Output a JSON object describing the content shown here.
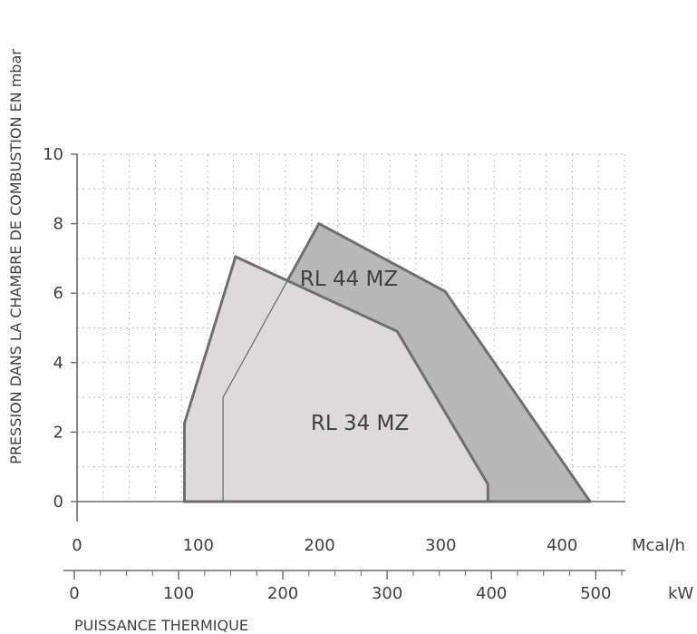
{
  "chart_data": {
    "type": "area",
    "ylabel": "PRESSION DANS LA CHAMBRE DE COMBUSTION EN mbar",
    "xlabel": "PUISSANCE THERMIQUE",
    "ylim": [
      0,
      10
    ],
    "y_ticks": [
      "0",
      "2",
      "4",
      "6",
      "8",
      "10"
    ],
    "grid": true,
    "axes": {
      "mcal": {
        "unit": "Mcal/h",
        "range": [
          0,
          450
        ],
        "ticks": [
          "0",
          "100",
          "200",
          "300",
          "400"
        ]
      },
      "kw": {
        "unit": "kW",
        "range": [
          0,
          525
        ],
        "ticks": [
          "0",
          "100",
          "200",
          "300",
          "400",
          "500"
        ]
      }
    },
    "series": [
      {
        "name": "RL 44 MZ",
        "color": "#b8b8b8",
        "x_unit": "kW",
        "points": [
          [
            140,
            0
          ],
          [
            140,
            3
          ],
          [
            232,
            8
          ],
          [
            353,
            6.05
          ],
          [
            492,
            0
          ]
        ]
      },
      {
        "name": "RL 34 MZ",
        "color": "#dcdadb",
        "x_unit": "kW",
        "points": [
          [
            103,
            0
          ],
          [
            103,
            2.25
          ],
          [
            152,
            7.05
          ],
          [
            307,
            4.9
          ],
          [
            394,
            0.5
          ],
          [
            394,
            0
          ]
        ]
      }
    ],
    "colors": {
      "outline": "#6f6f6f",
      "grid": "#bdbdbd",
      "text": "#3f3f3f"
    }
  }
}
